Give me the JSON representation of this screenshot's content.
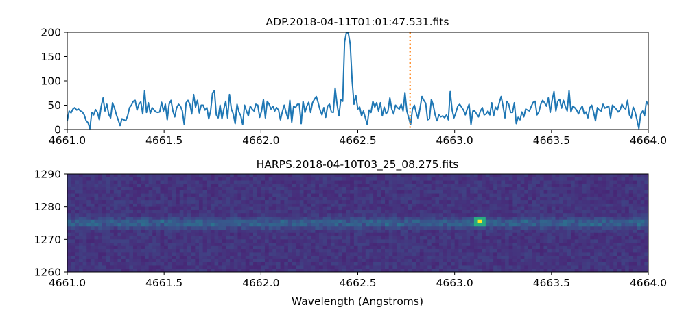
{
  "chart_data": [
    {
      "type": "line",
      "title": "ADP.2018-04-11T01:01:47.531.fits",
      "xlabel": "",
      "ylabel": "",
      "xlim": [
        4661.0,
        4664.0
      ],
      "ylim": [
        0,
        200
      ],
      "x_ticks": [
        "4661.0",
        "4661.5",
        "4662.0",
        "4662.5",
        "4663.0",
        "4663.5",
        "4664.0"
      ],
      "y_ticks": [
        "0",
        "50",
        "100",
        "150",
        "200"
      ],
      "colors": {
        "line": "#1f77b4",
        "marker_line": "#ff7f0e"
      },
      "marker_line_x": 4662.77,
      "series": [
        {
          "x_start": 4661.0,
          "x_step": 0.01,
          "values": [
            18,
            38,
            34,
            42,
            45,
            40,
            42,
            38,
            36,
            30,
            18,
            14,
            2,
            35,
            30,
            41,
            35,
            20,
            48,
            65,
            38,
            52,
            31,
            24,
            55,
            45,
            31,
            20,
            8,
            22,
            20,
            18,
            28,
            45,
            50,
            58,
            60,
            40,
            52,
            57,
            32,
            80,
            35,
            55,
            33,
            45,
            40,
            36,
            35,
            36,
            56,
            38,
            52,
            20,
            52,
            60,
            38,
            26,
            45,
            52,
            48,
            38,
            10,
            55,
            60,
            52,
            32,
            72,
            46,
            60,
            34,
            50,
            50,
            40,
            45,
            22,
            38,
            75,
            80,
            30,
            24,
            50,
            22,
            42,
            58,
            24,
            72,
            42,
            32,
            12,
            52,
            36,
            28,
            10,
            50,
            38,
            28,
            48,
            42,
            38,
            52,
            50,
            25,
            38,
            62,
            24,
            58,
            52,
            42,
            48,
            38,
            45,
            40,
            20,
            36,
            50,
            35,
            22,
            60,
            15,
            48,
            45,
            52,
            52,
            12,
            58,
            35,
            48,
            56,
            35,
            55,
            62,
            68,
            55,
            40,
            30,
            45,
            25,
            48,
            52,
            36,
            35,
            85,
            52,
            28,
            62,
            58,
            180,
            200,
            198,
            175,
            100,
            52,
            70,
            42,
            46,
            28,
            38,
            24,
            10,
            40,
            35,
            58,
            46,
            55,
            38,
            55,
            28,
            46,
            32,
            38,
            65,
            42,
            32,
            50,
            45,
            42,
            52,
            38,
            76,
            38,
            24,
            10,
            42,
            50,
            34,
            22,
            44,
            68,
            60,
            54,
            20,
            22,
            62,
            50,
            30,
            18,
            30,
            26,
            28,
            24,
            30,
            20,
            78,
            40,
            24,
            35,
            48,
            52,
            46,
            40,
            30,
            42,
            52,
            10,
            38,
            38,
            32,
            26,
            38,
            45,
            30,
            32,
            38,
            30,
            55,
            28,
            46,
            40,
            55,
            68,
            48,
            24,
            58,
            52,
            35,
            35,
            55,
            12,
            25,
            20,
            36,
            26,
            42,
            40,
            38,
            48,
            56,
            58,
            30,
            36,
            52,
            60,
            55,
            48,
            65,
            35,
            60,
            78,
            38,
            58,
            62,
            44,
            60,
            48,
            38,
            80,
            36,
            48,
            45,
            40,
            32,
            42,
            48,
            32,
            36,
            24,
            45,
            50,
            35,
            18,
            45,
            40,
            38,
            52,
            44,
            46,
            48,
            24,
            50,
            46,
            42,
            36,
            40,
            52,
            45,
            42,
            60,
            30,
            24,
            46,
            36,
            20,
            2,
            32,
            38,
            28,
            58,
            50
          ]
        }
      ]
    },
    {
      "type": "heatmap",
      "title": "HARPS.2018-04-10T03_25_08.275.fits",
      "xlabel": "Wavelength (Angstroms)",
      "ylabel": "",
      "xlim": [
        4661.0,
        4664.0
      ],
      "ylim": [
        1260,
        1290
      ],
      "x_ticks": [
        "4661.0",
        "4661.5",
        "4662.0",
        "4662.5",
        "4663.0",
        "4663.5",
        "4664.0"
      ],
      "y_ticks": [
        "1260",
        "1270",
        "1280",
        "1290"
      ],
      "colormap": "viridis",
      "band_center_y": 1275,
      "hot_pixel": {
        "x": 4663.12,
        "y": 1276
      }
    }
  ]
}
